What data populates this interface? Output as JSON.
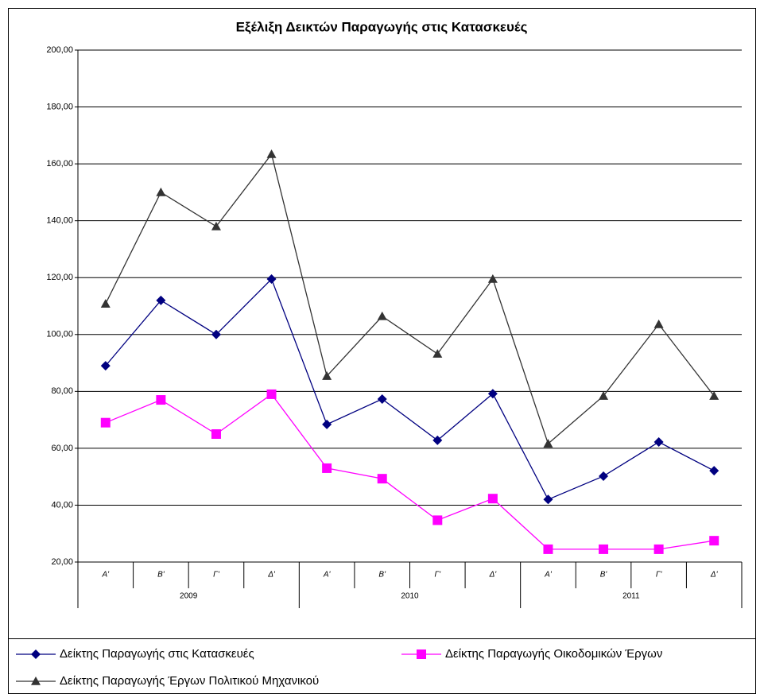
{
  "chart_data": {
    "type": "line",
    "title": "Εξέλιξη Δεικτών Παραγωγής στις Κατασκευές",
    "categories": [
      "Α'",
      "Β'",
      "Γ'",
      "Δ'",
      "Α'",
      "Β'",
      "Γ'",
      "Δ'",
      "Α'",
      "Β'",
      "Γ'",
      "Δ'"
    ],
    "groups": [
      "2009",
      "2010",
      "2011"
    ],
    "series": [
      {
        "name": "Δείκτης Παραγωγής στις Κατασκευές",
        "color": "#000080",
        "marker": "diamond",
        "values": [
          89,
          112,
          100,
          119.5,
          68.4,
          77.3,
          62.8,
          79.2,
          42,
          50.2,
          62.2,
          52.1
        ]
      },
      {
        "name": "Δείκτης Παραγωγής Οικοδομικών Έργων",
        "color": "#ff00ff",
        "marker": "square",
        "values": [
          69,
          77,
          65,
          79,
          53,
          49.3,
          34.7,
          42.3,
          24.5,
          24.5,
          24.5,
          27.5
        ]
      },
      {
        "name": "Δείκτης Παραγωγής Έργων Πολιτικού Μηχανικού",
        "color": "#333333",
        "marker": "triangle",
        "values": [
          110.8,
          150,
          138,
          163.4,
          85.4,
          106.4,
          93.2,
          119.5,
          61.6,
          78.4,
          103.6,
          78.4
        ]
      }
    ],
    "ylim": [
      20,
      200
    ],
    "yticks": [
      {
        "value": 20,
        "label": "20,00"
      },
      {
        "value": 40,
        "label": "40,00"
      },
      {
        "value": 60,
        "label": "60,00"
      },
      {
        "value": 80,
        "label": "80,00"
      },
      {
        "value": 100,
        "label": "100,00"
      },
      {
        "value": 120,
        "label": "120,00"
      },
      {
        "value": 140,
        "label": "140,00"
      },
      {
        "value": 160,
        "label": "160,00"
      },
      {
        "value": 180,
        "label": "180,00"
      },
      {
        "value": 200,
        "label": "200,00"
      }
    ],
    "grid": true,
    "legend": "bottom"
  }
}
